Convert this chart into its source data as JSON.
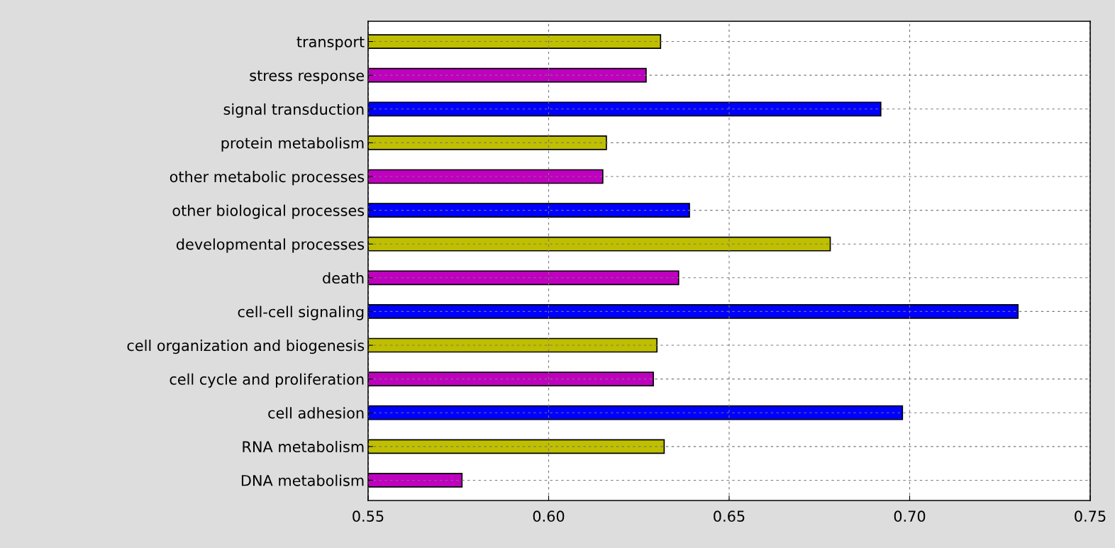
{
  "chart_data": {
    "type": "bar",
    "orientation": "horizontal",
    "categories": [
      "transport",
      "stress response",
      "signal transduction",
      "protein metabolism",
      "other metabolic processes",
      "other biological processes",
      "developmental processes",
      "death",
      "cell-cell signaling",
      "cell organization and biogenesis",
      "cell cycle and proliferation",
      "cell adhesion",
      "RNA metabolism",
      "DNA metabolism"
    ],
    "values": [
      0.631,
      0.627,
      0.692,
      0.616,
      0.615,
      0.639,
      0.678,
      0.636,
      0.73,
      0.63,
      0.629,
      0.698,
      0.632,
      0.576
    ],
    "colors": [
      "#bfbf00",
      "#bf00bf",
      "#0000ff",
      "#bfbf00",
      "#bf00bf",
      "#0000ff",
      "#bfbf00",
      "#bf00bf",
      "#0000ff",
      "#bfbf00",
      "#bf00bf",
      "#0000ff",
      "#bfbf00",
      "#bf00bf"
    ],
    "xlim": [
      0.55,
      0.75
    ],
    "xticks": [
      {
        "value": 0.55,
        "label": "0.55"
      },
      {
        "value": 0.6,
        "label": "0.60"
      },
      {
        "value": 0.65,
        "label": "0.65"
      },
      {
        "value": 0.7,
        "label": "0.70"
      },
      {
        "value": 0.75,
        "label": "0.75"
      }
    ],
    "grid": true
  }
}
